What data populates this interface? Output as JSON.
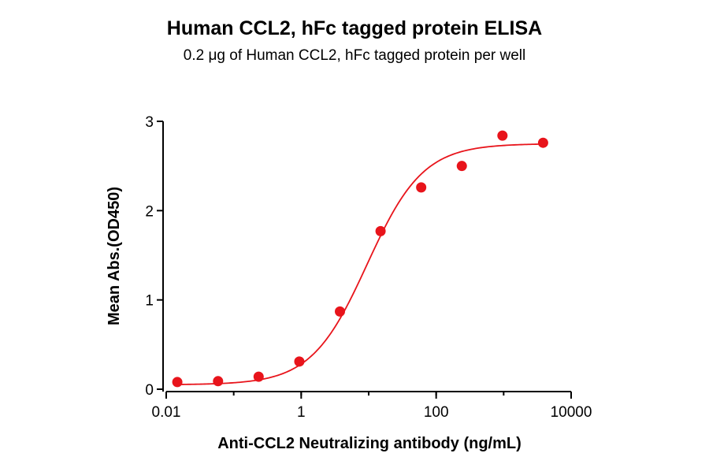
{
  "chart_data": {
    "type": "scatter",
    "title": "Human CCL2, hFc tagged protein ELISA",
    "subtitle": "0.2 μg of Human CCL2, hFc tagged protein per well",
    "xlabel": "Anti-CCL2 Neutralizing antibody (ng/mL)",
    "ylabel": "Mean Abs.(OD450)",
    "x_scale": "log10",
    "xlim": [
      0.01,
      10000
    ],
    "ylim": [
      0,
      3
    ],
    "x_ticks": [
      0.01,
      1,
      100,
      10000
    ],
    "x_tick_labels": [
      "0.01",
      "1",
      "100",
      "10000"
    ],
    "y_ticks": [
      0,
      1,
      2,
      3
    ],
    "y_tick_labels": [
      "0",
      "1",
      "2",
      "3"
    ],
    "grid": false,
    "legend": "none",
    "series": [
      {
        "x": [
          0.0146,
          0.0586,
          0.234,
          0.938,
          3.75,
          15,
          60,
          240,
          960,
          3840
        ],
        "y": [
          0.08,
          0.09,
          0.14,
          0.31,
          0.87,
          1.77,
          2.26,
          2.5,
          2.84,
          2.76
        ],
        "color": "#e8141b",
        "fit": {
          "model": "4PL",
          "bottom": 0.05,
          "top": 2.75,
          "ec50": 9.5,
          "hill": 1.05
        }
      }
    ]
  }
}
